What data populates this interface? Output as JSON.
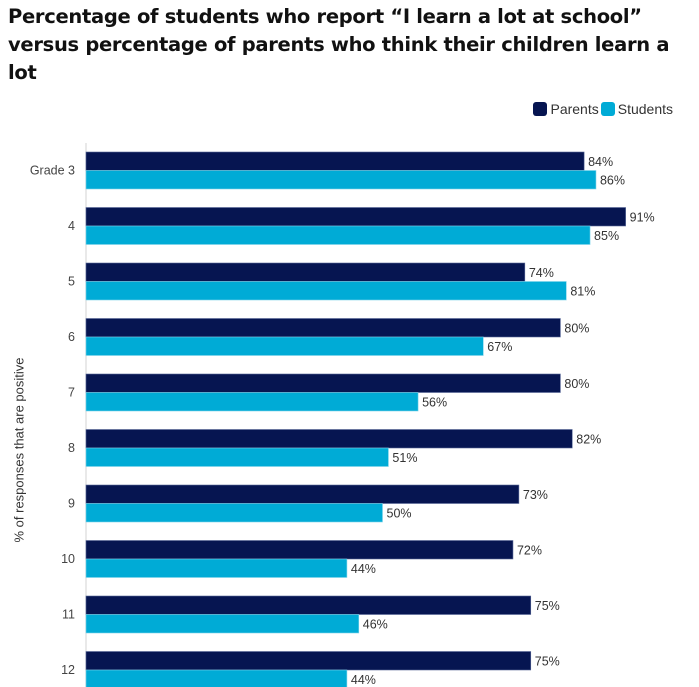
{
  "chart_data": {
    "type": "bar",
    "orientation": "horizontal",
    "title": "Percentage of students who report “I learn a lot at school” versus percentage of parents who think their children learn a lot",
    "xlabel": "",
    "ylabel": "% of responses that are positive",
    "categories": [
      "Grade 3",
      "4",
      "5",
      "6",
      "7",
      "8",
      "9",
      "10",
      "11",
      "12"
    ],
    "series": [
      {
        "name": "Parents",
        "color": "#061551",
        "values": [
          84,
          91,
          74,
          80,
          80,
          82,
          73,
          72,
          75,
          75
        ]
      },
      {
        "name": "Students",
        "color": "#00abd6",
        "values": [
          86,
          85,
          81,
          67,
          56,
          51,
          50,
          44,
          46,
          44
        ]
      }
    ],
    "value_suffix": "%",
    "xlim": [
      0,
      100
    ],
    "grid": false,
    "legend_position": "top-right"
  }
}
